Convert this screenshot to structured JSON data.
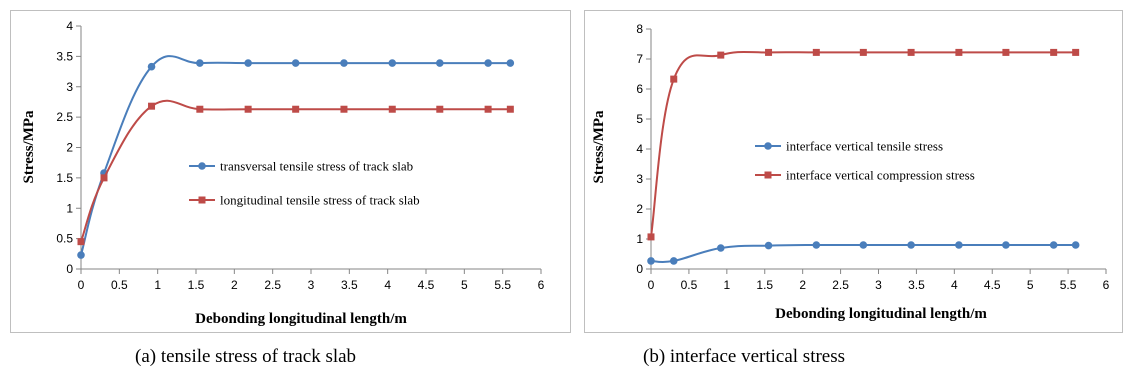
{
  "colors": {
    "blue": "#4A7EBB",
    "red": "#BE4B48",
    "axis": "#868686"
  },
  "captions": {
    "a": "(a) tensile stress of track slab",
    "b": "(b) interface vertical stress"
  },
  "chart_data": [
    {
      "type": "line",
      "xlabel": "Debonding longitudinal length/m",
      "ylabel": "Stress/MPa",
      "xlim": [
        0,
        6
      ],
      "ylim": [
        0,
        4
      ],
      "xticks": [
        "0",
        "0.5",
        "1",
        "1.5",
        "2",
        "2.5",
        "3",
        "3.5",
        "4",
        "4.5",
        "5",
        "5.5",
        "6"
      ],
      "yticks": [
        "0",
        "0.5",
        "1",
        "1.5",
        "2",
        "2.5",
        "3",
        "3.5",
        "4"
      ],
      "grid": false,
      "legend_position": "center-right",
      "series": [
        {
          "name": "transversal tensile stress of track slab",
          "marker": "circle",
          "color": "#4A7EBB",
          "x": [
            0,
            0.3,
            0.92,
            1.55,
            2.18,
            2.8,
            3.43,
            4.06,
            4.68,
            5.31,
            5.6
          ],
          "y": [
            0.23,
            1.58,
            3.33,
            3.39,
            3.39,
            3.39,
            3.39,
            3.39,
            3.39,
            3.39,
            3.39
          ]
        },
        {
          "name": "longitudinal tensile stress of track slab",
          "marker": "square",
          "color": "#BE4B48",
          "x": [
            0,
            0.3,
            0.92,
            1.55,
            2.18,
            2.8,
            3.43,
            4.06,
            4.68,
            5.31,
            5.6
          ],
          "y": [
            0.45,
            1.5,
            2.68,
            2.63,
            2.63,
            2.63,
            2.63,
            2.63,
            2.63,
            2.63,
            2.63
          ]
        }
      ]
    },
    {
      "type": "line",
      "xlabel": "Debonding longitudinal length/m",
      "ylabel": "Stress/MPa",
      "xlim": [
        0,
        6
      ],
      "ylim": [
        0,
        8
      ],
      "xticks": [
        "0",
        "0.5",
        "1",
        "1.5",
        "2",
        "2.5",
        "3",
        "3.5",
        "4",
        "4.5",
        "5",
        "5.5",
        "6"
      ],
      "yticks": [
        "0",
        "1",
        "2",
        "3",
        "4",
        "5",
        "6",
        "7",
        "8"
      ],
      "grid": false,
      "legend_position": "center-right",
      "series": [
        {
          "name": "interface vertical tensile stress",
          "marker": "circle",
          "color": "#4A7EBB",
          "x": [
            0,
            0.3,
            0.92,
            1.55,
            2.18,
            2.8,
            3.43,
            4.06,
            4.68,
            5.31,
            5.6
          ],
          "y": [
            0.27,
            0.27,
            0.7,
            0.78,
            0.8,
            0.8,
            0.8,
            0.8,
            0.8,
            0.8,
            0.8
          ]
        },
        {
          "name": "interface vertical compression stress",
          "marker": "square",
          "color": "#BE4B48",
          "x": [
            0,
            0.3,
            0.92,
            1.55,
            2.18,
            2.8,
            3.43,
            4.06,
            4.68,
            5.31,
            5.6
          ],
          "y": [
            1.07,
            6.33,
            7.13,
            7.22,
            7.22,
            7.22,
            7.22,
            7.22,
            7.22,
            7.22,
            7.22
          ]
        }
      ]
    }
  ]
}
